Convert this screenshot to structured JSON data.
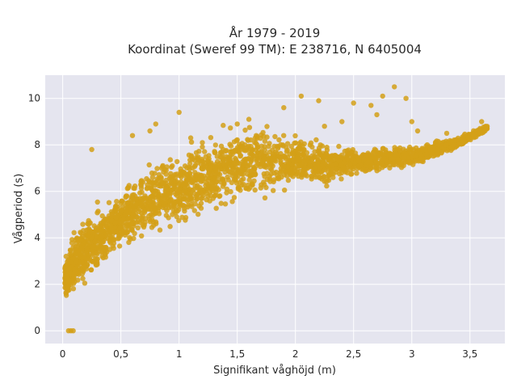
{
  "chart_data": {
    "type": "scatter",
    "title": [
      "År 1979 - 2019",
      "Koordinat (Sweref 99 TM): E 238716, N 6405004"
    ],
    "xlabel": "Signifikant våghöjd (m)",
    "ylabel": "Vågperiod (s)",
    "xlim": [
      -0.15,
      3.8
    ],
    "ylim": [
      -0.55,
      11.0
    ],
    "x_ticks": [
      0,
      0.5,
      1,
      1.5,
      2,
      2.5,
      3,
      3.5
    ],
    "x_tick_labels": [
      "0",
      "0,5",
      "1",
      "1,5",
      "2",
      "2,5",
      "3",
      "3,5"
    ],
    "y_ticks": [
      0,
      2,
      4,
      6,
      8,
      10
    ],
    "y_tick_labels": [
      "0",
      "2",
      "4",
      "6",
      "8",
      "10"
    ],
    "grid": true,
    "colors": {
      "marker": "#D4A017",
      "plot_bg": "#E5E5EF",
      "grid": "#ffffff"
    },
    "envelope": {
      "upper": [
        [
          0.0,
          2.9
        ],
        [
          0.1,
          4.4
        ],
        [
          0.3,
          5.6
        ],
        [
          0.5,
          6.4
        ],
        [
          0.75,
          7.3
        ],
        [
          1.0,
          8.1
        ],
        [
          1.25,
          8.7
        ],
        [
          1.5,
          9.1
        ],
        [
          1.7,
          9.2
        ],
        [
          2.0,
          8.7
        ],
        [
          2.3,
          8.2
        ],
        [
          2.6,
          8.0
        ],
        [
          3.0,
          8.0
        ],
        [
          3.4,
          8.4
        ],
        [
          3.65,
          8.9
        ]
      ],
      "lower": [
        [
          0.0,
          1.3
        ],
        [
          0.1,
          1.5
        ],
        [
          0.3,
          2.4
        ],
        [
          0.5,
          3.2
        ],
        [
          0.75,
          3.8
        ],
        [
          1.0,
          4.3
        ],
        [
          1.25,
          4.8
        ],
        [
          1.5,
          5.3
        ],
        [
          1.75,
          5.6
        ],
        [
          2.0,
          5.9
        ],
        [
          2.3,
          6.2
        ],
        [
          2.6,
          6.6
        ],
        [
          3.0,
          7.0
        ],
        [
          3.4,
          7.8
        ],
        [
          3.65,
          8.6
        ]
      ]
    },
    "outliers": [
      [
        0.05,
        0
      ],
      [
        0.07,
        0
      ],
      [
        0.09,
        0
      ],
      [
        0.25,
        7.8
      ],
      [
        0.6,
        8.4
      ],
      [
        0.75,
        8.6
      ],
      [
        0.8,
        8.9
      ],
      [
        0.85,
        7.0
      ],
      [
        1.0,
        9.4
      ],
      [
        1.1,
        8.3
      ],
      [
        1.2,
        8.1
      ],
      [
        1.5,
        8.9
      ],
      [
        1.6,
        9.1
      ],
      [
        1.9,
        9.6
      ],
      [
        2.05,
        10.1
      ],
      [
        2.2,
        9.9
      ],
      [
        2.25,
        8.8
      ],
      [
        2.4,
        9.0
      ],
      [
        2.5,
        9.8
      ],
      [
        2.65,
        9.7
      ],
      [
        2.7,
        9.3
      ],
      [
        2.75,
        10.1
      ],
      [
        2.85,
        10.5
      ],
      [
        2.95,
        10.0
      ],
      [
        3.0,
        9.0
      ],
      [
        3.05,
        8.6
      ],
      [
        3.3,
        8.5
      ],
      [
        3.45,
        8.4
      ],
      [
        3.6,
        9.0
      ]
    ]
  }
}
